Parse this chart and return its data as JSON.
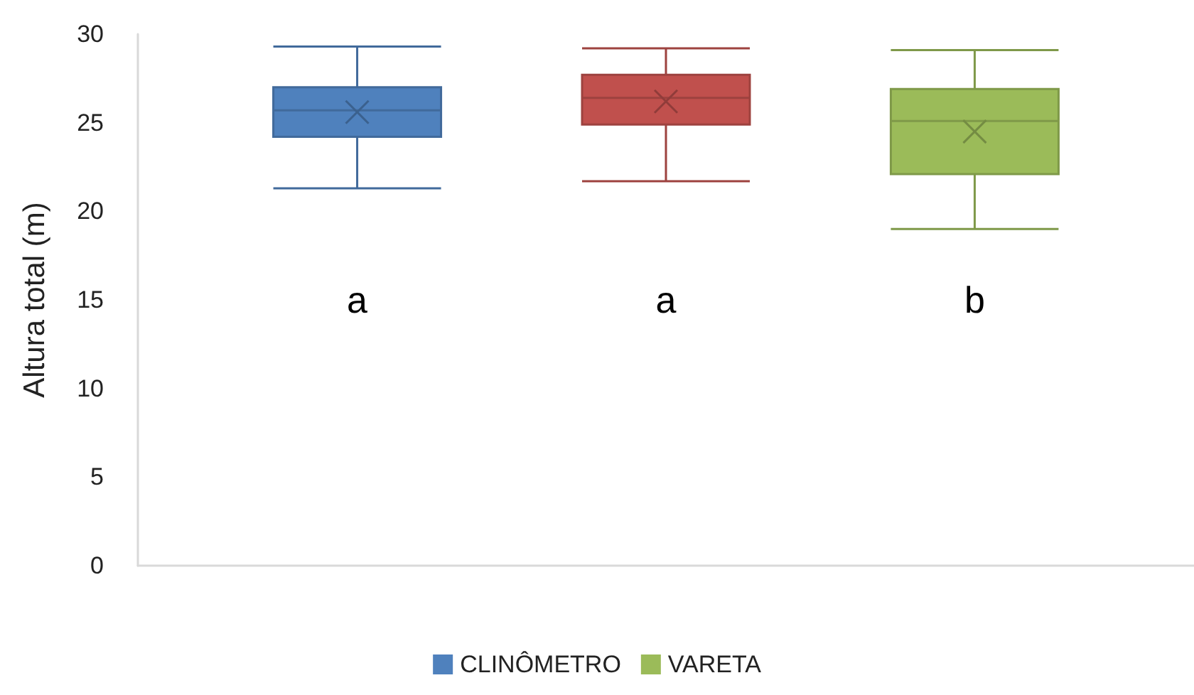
{
  "chart_data": {
    "type": "box",
    "ylabel": "Altura total (m)",
    "categories": [
      null
    ],
    "series": [
      {
        "name": "CLINÔMETRO",
        "color": "#4f81bd",
        "boxes": [
          {
            "low": 21.3,
            "q1": 24.2,
            "median": 25.7,
            "q3": 27.0,
            "high": 29.3,
            "mean": 25.6
          }
        ]
      },
      {
        "color": "#c0504d",
        "boxes": [
          {
            "low": 21.7,
            "q1": 24.9,
            "median": 26.4,
            "q3": 27.7,
            "high": 29.2,
            "mean": 26.2
          }
        ]
      },
      {
        "name": "VARETA",
        "color": "#9bbb59",
        "boxes": [
          {
            "low": 19.0,
            "q1": 22.1,
            "median": 25.1,
            "q3": 26.9,
            "high": 29.1,
            "mean": 24.5
          }
        ]
      }
    ],
    "ylim": [
      0,
      30
    ],
    "yticks": [
      0,
      5,
      10,
      15,
      20,
      25,
      30
    ],
    "grid": false,
    "legend": "bottom",
    "annotations": [
      "a",
      "a",
      "b"
    ]
  }
}
